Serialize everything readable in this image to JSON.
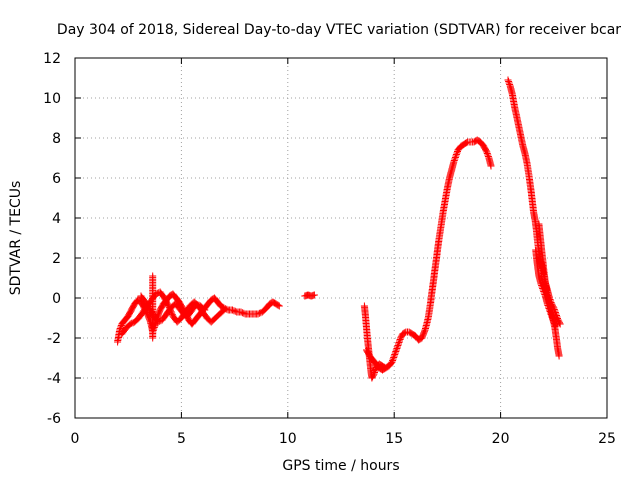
{
  "chart_data": {
    "type": "scatter",
    "title": "Day 304 of 2018, Sidereal Day-to-day VTEC variation (SDTVAR) for receiver bcar",
    "xlabel": "GPS time / hours",
    "ylabel": "SDTVAR / TECUs",
    "xlim": [
      0,
      25
    ],
    "ylim": [
      -6,
      12
    ],
    "xticks": [
      0,
      5,
      10,
      15,
      20,
      25
    ],
    "xtick_labels": [
      "0",
      "5",
      "10",
      "15",
      "20",
      "25"
    ],
    "yticks": [
      -6,
      -4,
      -2,
      0,
      2,
      4,
      6,
      8,
      10,
      12
    ],
    "ytick_labels": [
      "-6",
      "-4",
      "-2",
      "0",
      "2",
      "4",
      "6",
      "8",
      "10",
      "12"
    ],
    "grid": true,
    "marker": "plus",
    "color": "#ff0000",
    "series": [
      {
        "name": "SDTVAR",
        "segments": [
          [
            [
              2.0,
              -2.2
            ],
            [
              2.1,
              -1.6
            ],
            [
              2.2,
              -1.3
            ],
            [
              2.35,
              -1.1
            ],
            [
              2.5,
              -0.9
            ],
            [
              2.65,
              -0.6
            ],
            [
              2.8,
              -0.3
            ],
            [
              2.95,
              -0.1
            ],
            [
              3.1,
              -0.2
            ],
            [
              3.25,
              -0.5
            ],
            [
              3.4,
              -0.8
            ],
            [
              3.55,
              -1.2
            ],
            [
              3.65,
              -1.7
            ],
            [
              3.75,
              -1.4
            ],
            [
              3.85,
              -1.0
            ],
            [
              4.0,
              -0.6
            ],
            [
              4.15,
              -0.3
            ],
            [
              4.3,
              -0.1
            ],
            [
              4.45,
              0.1
            ],
            [
              4.6,
              0.2
            ],
            [
              4.75,
              0.0
            ],
            [
              4.9,
              -0.2
            ],
            [
              5.05,
              -0.5
            ],
            [
              5.2,
              -0.8
            ],
            [
              5.35,
              -1.1
            ],
            [
              5.5,
              -1.3
            ],
            [
              5.65,
              -1.1
            ],
            [
              5.8,
              -0.9
            ],
            [
              5.95,
              -0.7
            ],
            [
              6.1,
              -0.5
            ],
            [
              6.25,
              -0.3
            ],
            [
              6.4,
              -0.1
            ],
            [
              6.55,
              0.0
            ],
            [
              6.7,
              -0.2
            ],
            [
              6.85,
              -0.4
            ],
            [
              7.0,
              -0.5
            ],
            [
              7.2,
              -0.6
            ],
            [
              7.4,
              -0.6
            ],
            [
              7.6,
              -0.7
            ],
            [
              7.8,
              -0.7
            ],
            [
              8.0,
              -0.8
            ],
            [
              8.2,
              -0.8
            ],
            [
              8.4,
              -0.8
            ],
            [
              8.6,
              -0.8
            ],
            [
              8.8,
              -0.7
            ],
            [
              9.0,
              -0.5
            ],
            [
              9.15,
              -0.3
            ],
            [
              9.3,
              -0.2
            ],
            [
              9.45,
              -0.3
            ],
            [
              9.6,
              -0.4
            ]
          ],
          [
            [
              2.2,
              -1.8
            ],
            [
              2.4,
              -1.5
            ],
            [
              2.6,
              -1.3
            ],
            [
              2.8,
              -1.2
            ],
            [
              3.0,
              -1.0
            ],
            [
              3.2,
              -0.7
            ],
            [
              3.4,
              -0.4
            ],
            [
              3.6,
              -0.1
            ],
            [
              3.8,
              0.2
            ],
            [
              4.0,
              0.3
            ],
            [
              4.2,
              0.0
            ],
            [
              4.4,
              -0.4
            ],
            [
              4.6,
              -0.9
            ],
            [
              4.8,
              -1.2
            ],
            [
              5.0,
              -1.0
            ],
            [
              5.2,
              -0.7
            ],
            [
              5.4,
              -0.4
            ],
            [
              5.6,
              -0.2
            ],
            [
              5.8,
              -0.4
            ],
            [
              6.0,
              -0.7
            ],
            [
              6.2,
              -1.0
            ],
            [
              6.4,
              -1.2
            ],
            [
              6.6,
              -1.0
            ],
            [
              6.8,
              -0.8
            ],
            [
              7.0,
              -0.6
            ]
          ],
          [
            [
              3.1,
              0.1
            ],
            [
              3.3,
              -0.2
            ],
            [
              3.5,
              -0.5
            ],
            [
              3.7,
              -0.9
            ],
            [
              3.9,
              -1.2
            ],
            [
              4.1,
              -1.1
            ],
            [
              4.3,
              -0.8
            ],
            [
              4.5,
              -0.5
            ],
            [
              4.7,
              -0.3
            ],
            [
              4.9,
              -0.5
            ],
            [
              5.1,
              -0.8
            ],
            [
              5.3,
              -0.9
            ],
            [
              5.5,
              -0.6
            ],
            [
              5.7,
              -0.3
            ],
            [
              5.9,
              -0.4
            ],
            [
              6.1,
              -0.6
            ]
          ],
          [
            [
              3.65,
              1.1
            ],
            [
              3.65,
              0.7
            ],
            [
              3.65,
              0.3
            ],
            [
              3.65,
              -0.1
            ],
            [
              3.65,
              -0.5
            ],
            [
              3.65,
              -0.9
            ],
            [
              3.65,
              -1.3
            ],
            [
              3.65,
              -1.7
            ],
            [
              3.65,
              -2.0
            ]
          ],
          [
            [
              10.8,
              0.1
            ],
            [
              10.95,
              0.15
            ],
            [
              11.1,
              0.1
            ],
            [
              11.25,
              0.15
            ]
          ],
          [
            [
              13.6,
              -0.4
            ],
            [
              13.65,
              -0.9
            ],
            [
              13.7,
              -1.5
            ],
            [
              13.75,
              -2.1
            ],
            [
              13.8,
              -2.6
            ],
            [
              13.85,
              -3.1
            ],
            [
              13.9,
              -3.6
            ],
            [
              13.95,
              -4.0
            ],
            [
              14.05,
              -3.8
            ],
            [
              14.15,
              -3.5
            ],
            [
              14.3,
              -3.3
            ],
            [
              14.45,
              -3.4
            ],
            [
              14.6,
              -3.5
            ],
            [
              14.75,
              -3.4
            ],
            [
              14.9,
              -3.2
            ],
            [
              15.0,
              -2.9
            ],
            [
              15.1,
              -2.6
            ],
            [
              15.2,
              -2.3
            ],
            [
              15.3,
              -2.0
            ],
            [
              15.4,
              -1.8
            ],
            [
              15.55,
              -1.7
            ],
            [
              15.7,
              -1.7
            ],
            [
              15.85,
              -1.8
            ],
            [
              16.0,
              -1.9
            ],
            [
              16.15,
              -2.1
            ],
            [
              16.3,
              -2.0
            ],
            [
              16.45,
              -1.6
            ],
            [
              16.6,
              -1.0
            ],
            [
              16.7,
              -0.3
            ],
            [
              16.8,
              0.5
            ],
            [
              16.9,
              1.3
            ],
            [
              17.0,
              2.1
            ],
            [
              17.1,
              2.9
            ],
            [
              17.2,
              3.6
            ],
            [
              17.3,
              4.3
            ],
            [
              17.4,
              4.9
            ],
            [
              17.5,
              5.5
            ],
            [
              17.6,
              6.0
            ],
            [
              17.7,
              6.4
            ],
            [
              17.8,
              6.8
            ],
            [
              17.9,
              7.1
            ],
            [
              18.0,
              7.4
            ],
            [
              18.15,
              7.6
            ],
            [
              18.3,
              7.7
            ],
            [
              18.45,
              7.8
            ],
            [
              18.6,
              7.8
            ],
            [
              18.75,
              7.8
            ],
            [
              18.9,
              7.9
            ],
            [
              19.05,
              7.8
            ],
            [
              19.2,
              7.6
            ],
            [
              19.35,
              7.3
            ],
            [
              19.45,
              7.0
            ],
            [
              19.55,
              6.6
            ]
          ],
          [
            [
              13.7,
              -2.6
            ],
            [
              13.85,
              -2.9
            ],
            [
              14.0,
              -3.1
            ],
            [
              14.15,
              -3.3
            ],
            [
              14.3,
              -3.5
            ],
            [
              14.45,
              -3.6
            ],
            [
              14.6,
              -3.5
            ]
          ],
          [
            [
              20.35,
              10.9
            ],
            [
              20.45,
              10.6
            ],
            [
              20.55,
              10.2
            ],
            [
              20.65,
              9.6
            ],
            [
              20.75,
              9.1
            ],
            [
              20.85,
              8.6
            ],
            [
              20.95,
              8.1
            ],
            [
              21.05,
              7.6
            ],
            [
              21.15,
              7.2
            ],
            [
              21.25,
              6.7
            ],
            [
              21.35,
              6.0
            ],
            [
              21.45,
              5.2
            ],
            [
              21.55,
              4.3
            ],
            [
              21.62,
              3.9
            ],
            [
              21.68,
              3.4
            ],
            [
              21.75,
              2.7
            ],
            [
              21.85,
              2.0
            ],
            [
              21.95,
              1.6
            ],
            [
              22.05,
              1.0
            ],
            [
              22.15,
              0.5
            ],
            [
              22.25,
              -0.1
            ],
            [
              22.35,
              -0.5
            ],
            [
              22.45,
              -1.0
            ],
            [
              22.55,
              -1.5
            ],
            [
              22.62,
              -2.0
            ],
            [
              22.68,
              -2.5
            ],
            [
              22.75,
              -2.9
            ]
          ],
          [
            [
              21.8,
              3.7
            ],
            [
              21.85,
              3.2
            ],
            [
              21.9,
              2.7
            ],
            [
              21.95,
              2.2
            ],
            [
              22.0,
              1.7
            ],
            [
              22.05,
              1.2
            ],
            [
              22.1,
              0.8
            ],
            [
              22.2,
              0.4
            ],
            [
              22.3,
              0.0
            ],
            [
              22.4,
              -0.3
            ],
            [
              22.5,
              -0.5
            ],
            [
              22.6,
              -0.8
            ],
            [
              22.7,
              -1.1
            ],
            [
              22.8,
              -1.3
            ]
          ],
          [
            [
              21.65,
              2.4
            ],
            [
              21.7,
              1.9
            ],
            [
              21.75,
              1.5
            ],
            [
              21.8,
              1.1
            ],
            [
              21.9,
              0.7
            ],
            [
              22.0,
              0.4
            ],
            [
              22.1,
              0.1
            ],
            [
              22.2,
              -0.3
            ],
            [
              22.3,
              -0.6
            ],
            [
              22.4,
              -0.9
            ],
            [
              22.5,
              -1.2
            ],
            [
              22.6,
              -1.4
            ]
          ]
        ]
      }
    ]
  }
}
